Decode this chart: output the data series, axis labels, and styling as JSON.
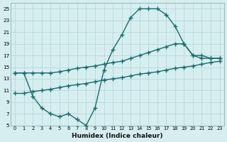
{
  "xlabel": "Humidex (Indice chaleur)",
  "background_color": "#d6eef0",
  "grid_color": "#b8d8da",
  "line_color": "#1a6b6b",
  "xlim": [
    -0.5,
    23.5
  ],
  "ylim": [
    5,
    26
  ],
  "xticks": [
    0,
    1,
    2,
    3,
    4,
    5,
    6,
    7,
    8,
    9,
    10,
    11,
    12,
    13,
    14,
    15,
    16,
    17,
    18,
    19,
    20,
    21,
    22,
    23
  ],
  "yticks": [
    5,
    7,
    9,
    11,
    13,
    15,
    17,
    19,
    21,
    23,
    25
  ],
  "line1_x": [
    0,
    1,
    2,
    3,
    4,
    5,
    6,
    7,
    8,
    9,
    10,
    11,
    12,
    13,
    14,
    15,
    16,
    17,
    18,
    19,
    20,
    21,
    22,
    23
  ],
  "line1_y": [
    14,
    14,
    10,
    8,
    7,
    6.5,
    7,
    6,
    5,
    8,
    14.5,
    18,
    20.5,
    23.5,
    25,
    25,
    25,
    24,
    22,
    19,
    17,
    16.5,
    16.5,
    16.5
  ],
  "line2_x": [
    0,
    1,
    2,
    3,
    4,
    5,
    6,
    7,
    8,
    9,
    10,
    11,
    12,
    13,
    14,
    15,
    16,
    17,
    18,
    19,
    20,
    21,
    22,
    23
  ],
  "line2_y": [
    14,
    14,
    14,
    14,
    14,
    14.2,
    14.5,
    14.8,
    15,
    15.2,
    15.5,
    15.8,
    16,
    16.5,
    17,
    17.5,
    18,
    18.5,
    19,
    19,
    17,
    17,
    16.5,
    16.5
  ],
  "line3_x": [
    0,
    1,
    2,
    3,
    4,
    5,
    6,
    7,
    8,
    9,
    10,
    11,
    12,
    13,
    14,
    15,
    16,
    17,
    18,
    19,
    20,
    21,
    22,
    23
  ],
  "line3_y": [
    10.5,
    10.5,
    10.8,
    11,
    11.2,
    11.5,
    11.8,
    12,
    12.2,
    12.5,
    12.8,
    13,
    13.2,
    13.5,
    13.8,
    14,
    14.2,
    14.5,
    14.8,
    15,
    15.2,
    15.5,
    15.8,
    16
  ],
  "marker": "+",
  "markersize": 4,
  "linewidth": 1.0
}
